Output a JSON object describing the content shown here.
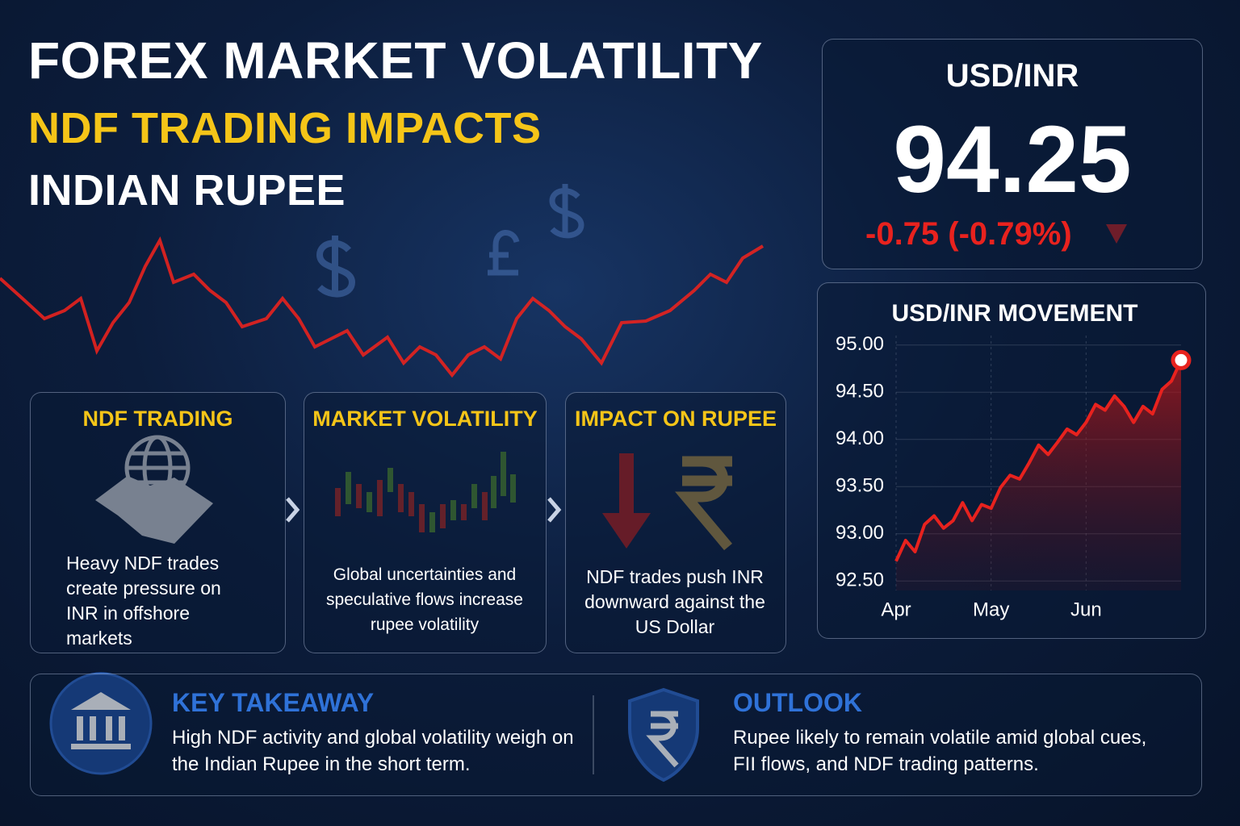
{
  "header": {
    "title": "FOREX MARKET VOLATILITY",
    "subtitle": "NDF TRADING IMPACTS",
    "subtitle2": "INDIAN RUPEE"
  },
  "quote": {
    "pair": "USD/INR",
    "price": "94.25",
    "change": "-0.75 (-0.79%)"
  },
  "chart_data": {
    "type": "line",
    "title": "USD/INR MOVEMENT",
    "categories": [
      "Apr",
      null,
      null,
      null,
      null,
      null,
      null,
      null,
      null,
      null,
      "May",
      null,
      null,
      null,
      null,
      null,
      null,
      null,
      null,
      null,
      "Jun",
      null,
      null,
      null,
      null,
      null,
      null,
      null,
      null,
      null,
      null
    ],
    "values": [
      92.71,
      92.93,
      92.81,
      93.1,
      93.19,
      93.06,
      93.14,
      93.33,
      93.14,
      93.31,
      93.27,
      93.49,
      93.62,
      93.58,
      93.75,
      93.94,
      93.84,
      93.97,
      94.11,
      94.05,
      94.18,
      94.37,
      94.31,
      94.46,
      94.35,
      94.18,
      94.35,
      94.27,
      94.53,
      94.62,
      94.84
    ],
    "color": "#e8221e",
    "ylim": [
      92.4,
      95.1
    ],
    "yticks": [
      {
        "value": 92.5,
        "label": "92.50"
      },
      {
        "value": 93,
        "label": "93.00"
      },
      {
        "value": 93.5,
        "label": "93.50"
      },
      {
        "value": 94,
        "label": "94.00"
      },
      {
        "value": 94.5,
        "label": "94.50"
      },
      {
        "value": 95,
        "label": "95.00"
      }
    ],
    "grid": true
  },
  "cards": [
    {
      "title": "NDF TRADING",
      "text": "Heavy NDF trades create pressure on INR in offshore markets"
    },
    {
      "title": "MARKET VOLATILITY",
      "text": "Global uncertainties and speculative flows increase rupee volatility"
    },
    {
      "title": "IMPACT ON RUPEE",
      "text": "NDF trades push INR downward against the US Dollar"
    }
  ],
  "takeaway": {
    "title": "KEY TAKEAWAY",
    "text": "High NDF activity and global volatility weigh on the Indian Rupee in the short term."
  },
  "outlook": {
    "title": "OUTLOOK",
    "text": "Rupee likely to remain volatile amid global cues, FII flows, and NDF trading patterns."
  }
}
